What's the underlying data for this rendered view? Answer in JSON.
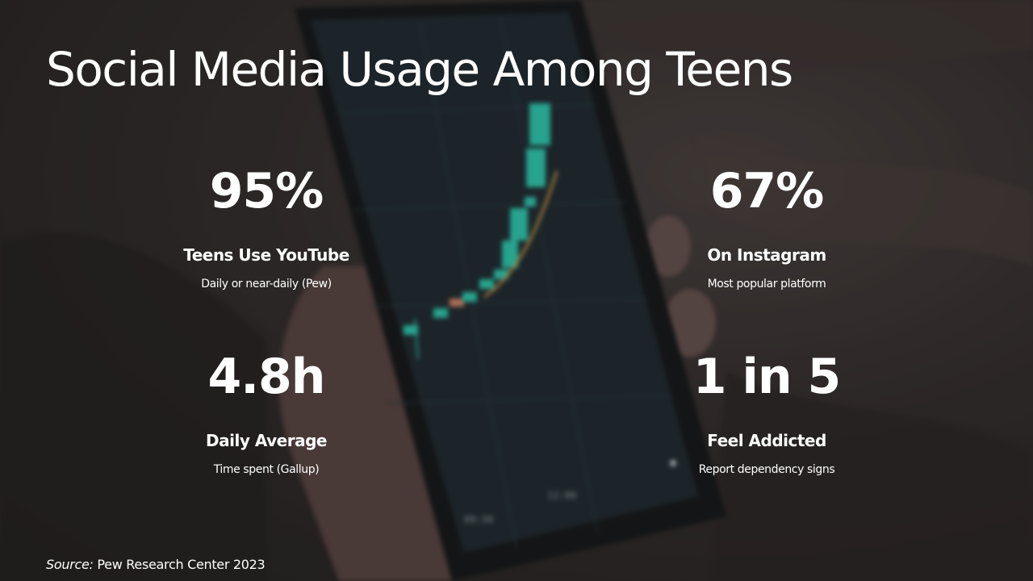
{
  "slide": {
    "title": "Social Media Usage Among Teens",
    "stats": [
      {
        "value": "95%",
        "label": "Teens Use YouTube",
        "note": "Daily or near-daily (Pew)"
      },
      {
        "value": "67%",
        "label": "On Instagram",
        "note": "Most popular platform"
      },
      {
        "value": "4.8h",
        "label": "Daily Average",
        "note": "Time spent (Gallup)"
      },
      {
        "value": "1 in 5",
        "label": "Feel Addicted",
        "note": "Report dependency signs"
      }
    ],
    "source_prefix": "Source:",
    "source_text": "Pew Research Center 2023"
  },
  "background": {
    "image": "blurred-hand-holding-phone-with-stock-chart",
    "phone_screen_labels": [
      "09:30",
      "12:00"
    ],
    "colors": {
      "text": "#ffffff",
      "candle_up": "#2ed3b7",
      "candle_down": "#e08c6a",
      "trend_line": "#d9a04a",
      "screen": "#1f2a30"
    }
  }
}
